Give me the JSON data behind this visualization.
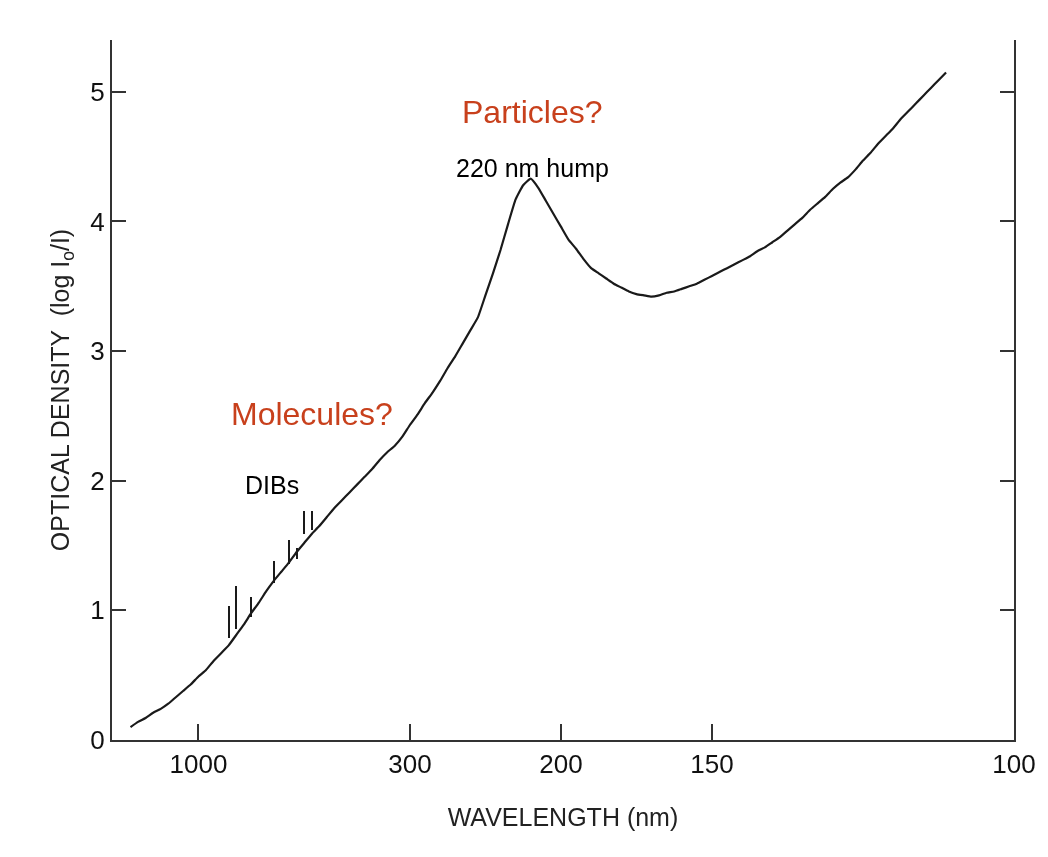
{
  "chart_data": {
    "type": "line",
    "xlabel": "WAVELENGTH (nm)",
    "ylabel": "OPTICAL DENSITY  (log I$_{o}$/I)",
    "categories": [
      null,
      null,
      null,
      null,
      null,
      null,
      null,
      null,
      null,
      null,
      null,
      "1000",
      null,
      null,
      null,
      null,
      null,
      null,
      null,
      null,
      null,
      null,
      null,
      null,
      null,
      null,
      null,
      null,
      null,
      null,
      null,
      null,
      null,
      null,
      null,
      null,
      null,
      null,
      null,
      "300",
      null,
      null,
      null,
      null,
      null,
      null,
      null,
      null,
      null,
      null,
      null,
      null,
      null,
      null,
      null,
      null,
      null,
      null,
      null,
      "200",
      null,
      null,
      null,
      null,
      null,
      null,
      null,
      null,
      null,
      null,
      null,
      null,
      null,
      null,
      null,
      null,
      null,
      null,
      null,
      "150",
      null,
      null,
      null,
      null,
      null,
      null,
      null,
      null,
      null,
      null,
      null,
      null,
      null,
      null,
      null,
      null,
      null,
      null,
      null,
      null,
      null,
      null,
      null,
      null,
      null,
      null,
      null,
      null,
      null,
      null,
      null,
      null,
      null,
      null,
      null,
      null,
      null,
      null,
      null,
      "100"
    ],
    "ylim": [
      0,
      5.4
    ],
    "yticks": [
      0,
      1,
      2,
      3,
      4,
      5
    ],
    "marker": "none",
    "line_style": "solid",
    "series": [
      {
        "color": "#1a1a1a",
        "values": [
          null,
          null,
          0.1,
          0.14,
          0.17,
          0.21,
          0.24,
          0.28,
          0.33,
          0.38,
          0.43,
          0.49,
          0.54,
          0.61,
          0.67,
          0.73,
          0.81,
          0.89,
          0.98,
          1.06,
          1.15,
          1.23,
          1.3,
          1.37,
          1.45,
          1.52,
          1.59,
          1.65,
          1.72,
          1.79,
          1.85,
          1.91,
          1.97,
          2.03,
          2.09,
          2.16,
          2.22,
          2.27,
          2.34,
          2.43,
          2.51,
          2.6,
          2.68,
          2.77,
          2.87,
          2.96,
          3.06,
          3.16,
          3.26,
          3.43,
          3.6,
          3.78,
          3.98,
          4.17,
          4.28,
          4.33,
          4.26,
          4.16,
          4.06,
          3.96,
          3.86,
          3.79,
          3.71,
          3.64,
          3.6,
          3.56,
          3.52,
          3.49,
          3.46,
          3.44,
          3.43,
          3.42,
          3.43,
          3.45,
          3.46,
          3.48,
          3.5,
          3.52,
          3.55,
          3.58,
          3.61,
          3.64,
          3.67,
          3.7,
          3.73,
          3.77,
          3.8,
          3.84,
          3.88,
          3.93,
          3.98,
          4.03,
          4.09,
          4.14,
          4.19,
          4.25,
          4.3,
          4.34,
          4.4,
          4.47,
          4.53,
          4.6,
          4.66,
          4.72,
          4.79,
          4.85,
          4.91,
          4.97,
          5.03,
          5.09,
          5.15,
          null,
          null,
          null,
          null,
          null,
          null,
          null,
          null,
          null
        ]
      },
      {
        "type": "bar",
        "color": "#1a1a1a",
        "values": [
          null,
          null,
          null,
          null,
          null,
          null,
          null,
          null,
          null,
          null,
          null,
          null,
          null,
          null,
          null,
          0.24,
          0.33,
          null,
          0.15,
          null,
          null,
          0.17,
          null,
          0.18,
          0.08,
          0.18,
          0.15,
          null,
          null,
          null,
          null,
          null,
          null,
          null,
          null,
          null,
          null,
          null,
          null,
          null,
          null,
          null,
          null,
          null,
          null,
          null,
          null,
          null,
          null,
          null,
          null,
          null,
          null,
          null,
          null,
          null,
          null,
          null,
          null,
          null,
          null,
          null,
          null,
          null,
          null,
          null,
          null,
          null,
          null,
          null,
          null,
          null,
          null,
          null,
          null,
          null,
          null,
          null,
          null,
          null,
          null,
          null,
          null,
          null,
          null,
          null,
          null,
          null,
          null,
          null,
          null,
          null,
          null,
          null,
          null,
          null,
          null,
          null,
          null,
          null,
          null,
          null,
          null,
          null,
          null,
          null,
          null,
          null,
          null,
          null,
          null,
          null,
          null,
          null,
          null,
          null,
          null,
          null,
          null,
          null
        ],
        "base": [
          null,
          null,
          null,
          null,
          null,
          null,
          null,
          null,
          null,
          null,
          null,
          null,
          null,
          null,
          null,
          0.79,
          0.86,
          null,
          0.95,
          null,
          null,
          1.21,
          null,
          1.36,
          1.4,
          1.59,
          1.62,
          null,
          null,
          null,
          null,
          null,
          null,
          null,
          null,
          null,
          null,
          null,
          null,
          null,
          null,
          null,
          null,
          null,
          null,
          null,
          null,
          null,
          null,
          null,
          null,
          null,
          null,
          null,
          null,
          null,
          null,
          null,
          null,
          null,
          null,
          null,
          null,
          null,
          null,
          null,
          null,
          null,
          null,
          null,
          null,
          null,
          null,
          null,
          null,
          null,
          null,
          null,
          null,
          null,
          null,
          null,
          null,
          null,
          null,
          null,
          null,
          null,
          null,
          null,
          null,
          null,
          null,
          null,
          null,
          null,
          null,
          null,
          null,
          null,
          null,
          null,
          null,
          null,
          null,
          null,
          null,
          null,
          null,
          null,
          null,
          null,
          null,
          null,
          null,
          null,
          null,
          null,
          null,
          null
        ]
      }
    ],
    "annotations": [
      "Particles?",
      "220 nm hump",
      "Molecules?",
      "DIBs"
    ]
  }
}
